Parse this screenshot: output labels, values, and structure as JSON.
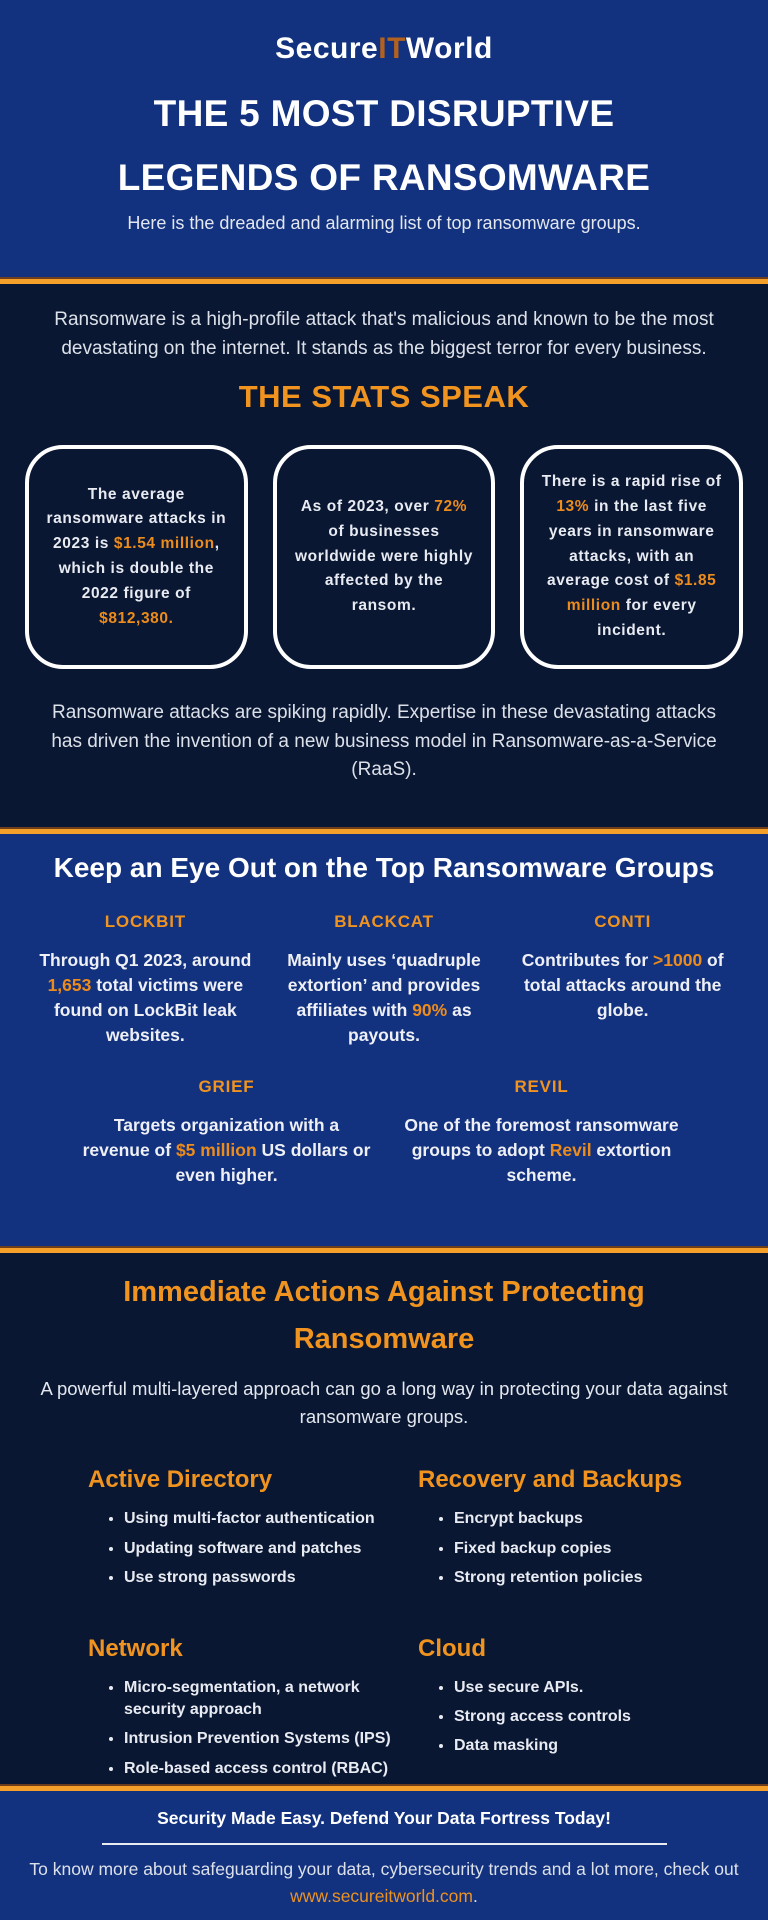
{
  "colors": {
    "royal_blue": "#12317f",
    "dark_navy": "#0a1733",
    "accent_orange": "#f0941f",
    "divider_orange": "#f5a02b",
    "logo_it_orange": "#b3611f"
  },
  "header": {
    "logo_part1": "Secure",
    "logo_part2": "IT",
    "logo_part3": "World",
    "title_line1": "THE 5 MOST DISRUPTIVE",
    "title_line2": "LEGENDS OF RANSOMWARE",
    "subtitle": "Here is the dreaded and alarming list of top ransomware groups."
  },
  "intro": {
    "paragraph": "Ransomware is a high-profile attack that's malicious and known to be the most devastating on the internet. It stands as the biggest terror for every business.",
    "stats_heading": "THE STATS SPEAK",
    "stat_cards": [
      {
        "segments": [
          {
            "t": "The average ransomware attacks in 2023 is "
          },
          {
            "t": "$1.54 million",
            "hl": true
          },
          {
            "t": ", which is double the 2022 figure of "
          },
          {
            "t": "$812,380.",
            "hl": true
          }
        ]
      },
      {
        "segments": [
          {
            "t": "As of 2023, over "
          },
          {
            "t": "72%",
            "hl": true
          },
          {
            "t": " of businesses worldwide were highly affected by the ransom."
          }
        ]
      },
      {
        "segments": [
          {
            "t": "There is a rapid rise of "
          },
          {
            "t": "13%",
            "hl": true
          },
          {
            "t": " in the last five years in ransomware attacks, with an average cost of "
          },
          {
            "t": "$1.85 million",
            "hl": true
          },
          {
            "t": " for every incident."
          }
        ]
      }
    ],
    "closing_paragraph": "Ransomware attacks are spiking rapidly. Expertise in these devastating attacks has driven the invention of a new business model in Ransomware-as-a-Service (RaaS)."
  },
  "groups": {
    "heading": "Keep an Eye Out on the Top Ransomware Groups",
    "row1": [
      {
        "name": "LOCKBIT",
        "segments": [
          {
            "t": "Through Q1 2023, around "
          },
          {
            "t": "1,653",
            "hl": true
          },
          {
            "t": " total victims were found on LockBit leak websites."
          }
        ]
      },
      {
        "name": "BLACKCAT",
        "segments": [
          {
            "t": "Mainly uses ‘quadruple extortion’ and provides affiliates with "
          },
          {
            "t": "90%",
            "hl": true
          },
          {
            "t": " as payouts."
          }
        ]
      },
      {
        "name": "CONTI",
        "segments": [
          {
            "t": "Contributes for "
          },
          {
            "t": ">1000",
            "hl": true
          },
          {
            "t": " of total attacks around the globe."
          }
        ]
      }
    ],
    "row2": [
      {
        "name": "GRIEF",
        "segments": [
          {
            "t": "Targets organization with a revenue of "
          },
          {
            "t": "$5 million",
            "hl": true
          },
          {
            "t": " US dollars or even higher."
          }
        ]
      },
      {
        "name": "REVIL",
        "segments": [
          {
            "t": "One of the foremost ransomware groups to adopt "
          },
          {
            "t": "Revil",
            "hl": true
          },
          {
            "t": " extortion scheme."
          }
        ]
      }
    ]
  },
  "actions": {
    "heading_line1": "Immediate Actions Against Protecting",
    "heading_line2": "Ransomware",
    "subtitle": "A powerful multi-layered approach can go a long way in protecting your data against ransomware groups.",
    "categories": [
      {
        "title": "Active Directory",
        "bullets": [
          "Using multi-factor authentication",
          "Updating software and patches",
          "Use strong passwords"
        ]
      },
      {
        "title": "Recovery and Backups",
        "bullets": [
          "Encrypt backups",
          "Fixed backup copies",
          "Strong retention policies"
        ]
      },
      {
        "title": "Network",
        "bullets": [
          "Micro-segmentation, a network security approach",
          "Intrusion Prevention Systems (IPS)",
          "Role-based access control (RBAC)"
        ]
      },
      {
        "title": "Cloud",
        "bullets": [
          "Use secure APIs.",
          "Strong access controls",
          "Data masking"
        ]
      }
    ]
  },
  "footer": {
    "tagline": "Security Made Easy. Defend Your Data Fortress Today!",
    "info_pre": "To know more about safeguarding your data, cybersecurity trends and a lot more, check out ",
    "link": "www.secureitworld.com",
    "info_post": "."
  }
}
